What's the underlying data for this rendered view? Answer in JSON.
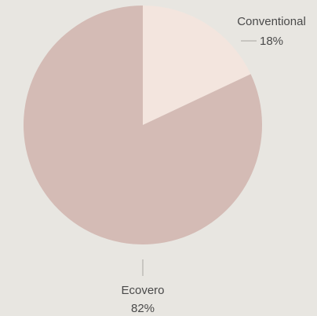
{
  "chart_data": {
    "type": "pie",
    "title": "",
    "slices": [
      {
        "label": "Conventional",
        "value": 18,
        "display": "18%",
        "color": "#f3e5de"
      },
      {
        "label": "Ecovero",
        "value": 82,
        "display": "82%",
        "color": "#d4bbb5"
      }
    ],
    "start_angle_deg": 0,
    "direction": "clockwise",
    "background": "#e8e6e1"
  }
}
